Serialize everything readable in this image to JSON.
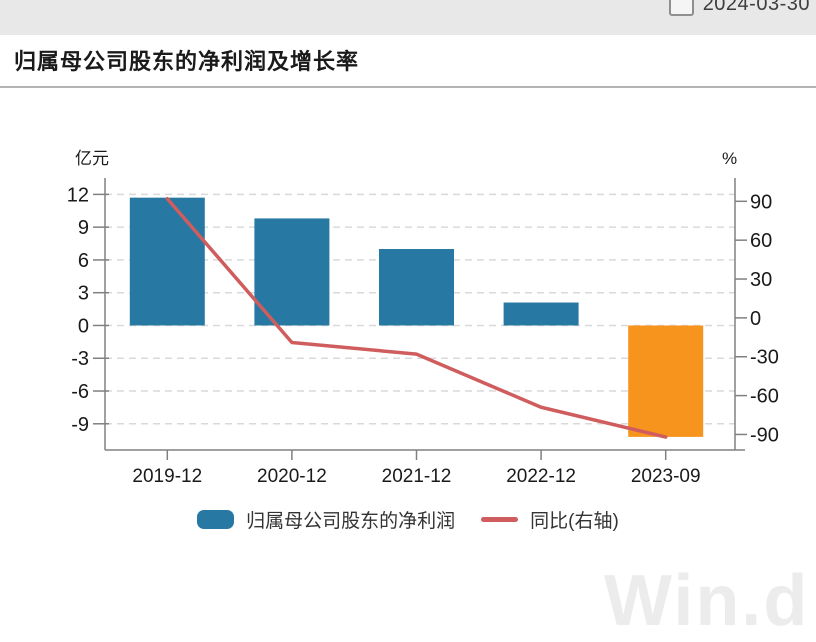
{
  "toolbar": {
    "date": "2024-03-30"
  },
  "title": "归属母公司股东的净利润及增长率",
  "watermark": "Win.d",
  "chart_data": {
    "type": "bar",
    "subtype": "bar+line dual axis",
    "categories": [
      "2019-12",
      "2020-12",
      "2021-12",
      "2022-12",
      "2023-09"
    ],
    "series": [
      {
        "name": "归属母公司股东的净利润",
        "type": "bar",
        "axis": "left",
        "unit": "亿元",
        "values": [
          11.7,
          9.8,
          7.0,
          2.1,
          -10.2
        ],
        "bar_colors": [
          "#2779a3",
          "#2779a3",
          "#2779a3",
          "#2779a3",
          "#f7941e"
        ]
      },
      {
        "name": "同比(右轴)",
        "type": "line",
        "axis": "right",
        "unit": "%",
        "values": [
          92,
          -19,
          -28,
          -69,
          -92
        ],
        "color": "#d05d5d"
      }
    ],
    "left_axis": {
      "label": "亿元",
      "ticks": [
        12,
        9,
        6,
        3,
        0,
        -3,
        -6,
        -9
      ],
      "range": [
        -11.4,
        13.5
      ]
    },
    "right_axis": {
      "label": "%",
      "ticks": [
        90,
        60,
        30,
        0,
        -30,
        -60,
        -90
      ],
      "range": [
        -102,
        108
      ]
    },
    "grid": "horizontal dashed at left-axis ticks",
    "legend_position": "bottom",
    "legend": [
      {
        "label": "归属母公司股东的净利润",
        "swatch": "bar",
        "color": "#2779a3"
      },
      {
        "label": "同比(右轴)",
        "swatch": "line",
        "color": "#d05d5d"
      }
    ]
  },
  "colors": {
    "bar_blue": "#2779a3",
    "bar_orange": "#f7941e",
    "line_red": "#d05d5d",
    "axis": "#808080",
    "grid": "#d9d9d9",
    "topbar_bg": "#e8e8e8",
    "tick_text": "#1a1a1a"
  }
}
